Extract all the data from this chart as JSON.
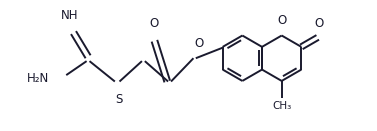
{
  "bg_color": "#ffffff",
  "line_color": "#1a1a2e",
  "line_width": 1.4,
  "font_size": 8.5,
  "figsize": [
    3.77,
    1.31
  ],
  "dpi": 100,
  "xlim": [
    0,
    10.5
  ],
  "ylim": [
    0,
    4.5
  ]
}
